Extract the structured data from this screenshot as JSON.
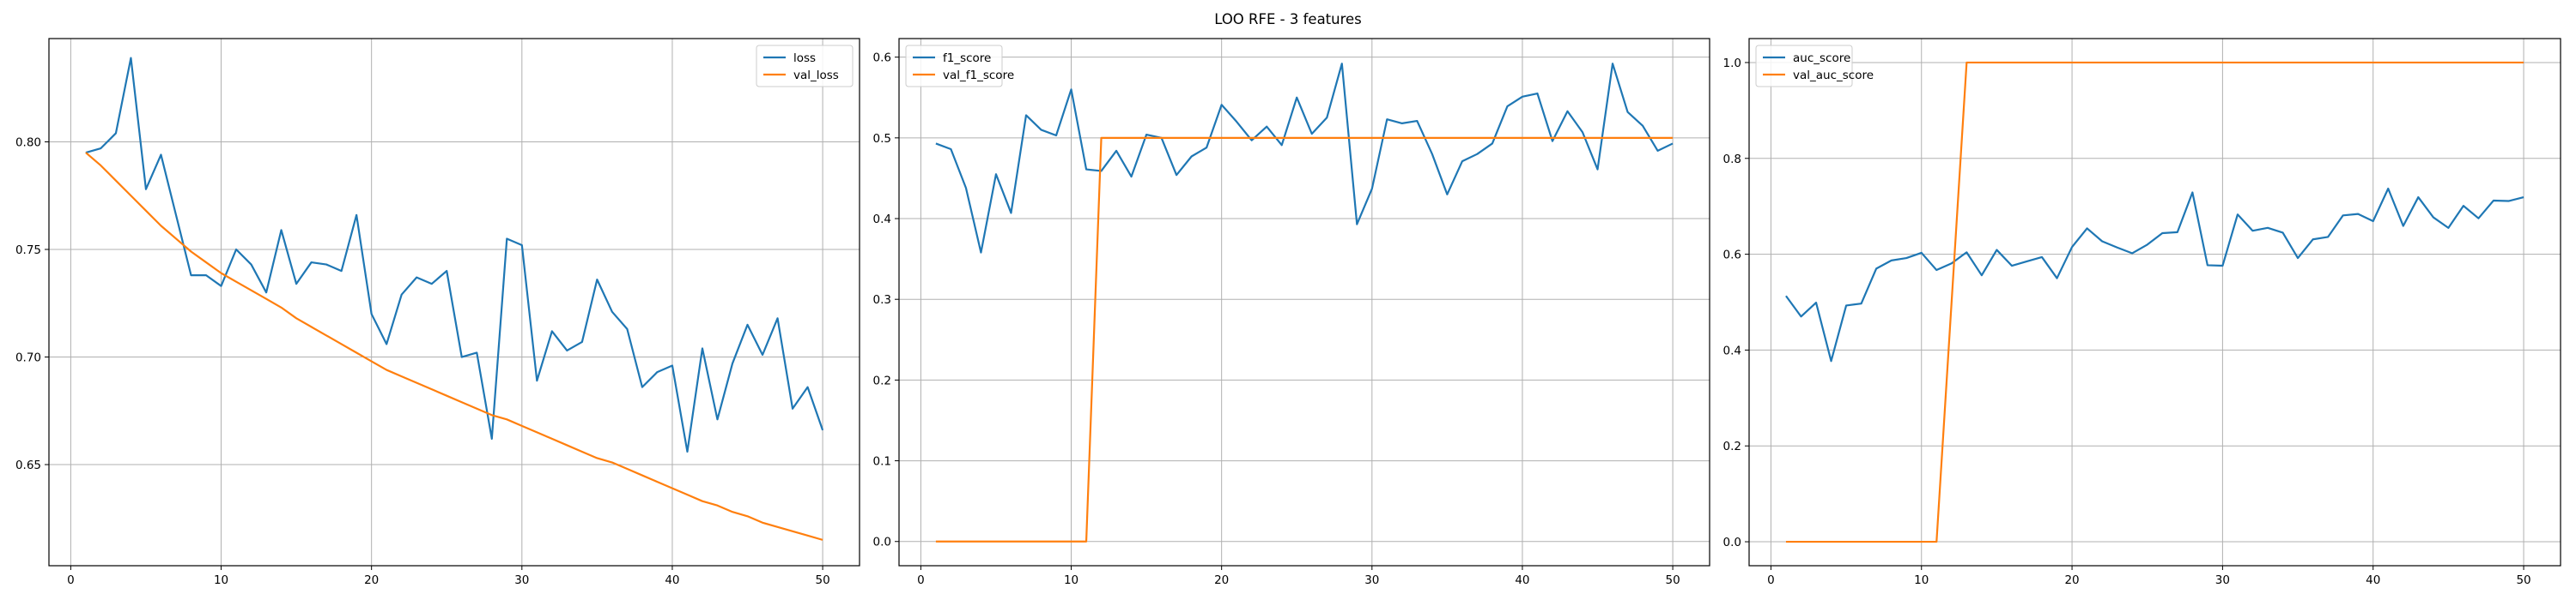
{
  "figure": {
    "title": "LOO RFE - 3 features"
  },
  "colors": {
    "train": "#1f77b4",
    "validation": "#ff7f0e",
    "grid": "#b0b0b0",
    "axes": "#000000",
    "legend_border": "#cccccc"
  },
  "chart_data": [
    {
      "type": "line",
      "title": "",
      "xlabel": "",
      "ylabel": "",
      "xlim": [
        -1.45,
        52.45
      ],
      "ylim": [
        0.603,
        0.848
      ],
      "xticks": [
        0,
        10,
        20,
        30,
        40,
        50
      ],
      "yticks": [
        0.65,
        0.7,
        0.75,
        0.8
      ],
      "ytick_labels": [
        "0.65",
        "0.70",
        "0.75",
        "0.80"
      ],
      "grid": true,
      "legend_position": "top-right",
      "x": [
        1,
        2,
        3,
        4,
        5,
        6,
        7,
        8,
        9,
        10,
        11,
        12,
        13,
        14,
        15,
        16,
        17,
        18,
        19,
        20,
        21,
        22,
        23,
        24,
        25,
        26,
        27,
        28,
        29,
        30,
        31,
        32,
        33,
        34,
        35,
        36,
        37,
        38,
        39,
        40,
        41,
        42,
        43,
        44,
        45,
        46,
        47,
        48,
        49,
        50
      ],
      "series": [
        {
          "name": "loss",
          "values": [
            0.795,
            0.797,
            0.804,
            0.839,
            0.778,
            0.794,
            0.766,
            0.738,
            0.738,
            0.733,
            0.75,
            0.743,
            0.73,
            0.759,
            0.734,
            0.744,
            0.743,
            0.74,
            0.766,
            0.72,
            0.706,
            0.729,
            0.737,
            0.734,
            0.74,
            0.7,
            0.702,
            0.662,
            0.755,
            0.752,
            0.689,
            0.712,
            0.703,
            0.707,
            0.736,
            0.721,
            0.713,
            0.686,
            0.693,
            0.696,
            0.656,
            0.704,
            0.671,
            0.697,
            0.715,
            0.701,
            0.718,
            0.676,
            0.686,
            0.666
          ]
        },
        {
          "name": "val_loss",
          "values": [
            0.795,
            0.789,
            0.782,
            0.775,
            0.768,
            0.761,
            0.755,
            0.749,
            0.744,
            0.739,
            0.735,
            0.731,
            0.727,
            0.723,
            0.718,
            0.714,
            0.71,
            0.706,
            0.702,
            0.698,
            0.694,
            0.691,
            0.688,
            0.685,
            0.682,
            0.679,
            0.676,
            0.673,
            0.671,
            0.668,
            0.665,
            0.662,
            0.659,
            0.656,
            0.653,
            0.651,
            0.648,
            0.645,
            0.642,
            0.639,
            0.636,
            0.633,
            0.631,
            0.628,
            0.626,
            0.623,
            0.621,
            0.619,
            0.617,
            0.615
          ]
        }
      ]
    },
    {
      "type": "line",
      "title": "",
      "xlabel": "",
      "ylabel": "",
      "xlim": [
        -1.45,
        52.45
      ],
      "ylim": [
        -0.03,
        0.623
      ],
      "xticks": [
        0,
        10,
        20,
        30,
        40,
        50
      ],
      "yticks": [
        0.0,
        0.1,
        0.2,
        0.3,
        0.4,
        0.5,
        0.6
      ],
      "ytick_labels": [
        "0.0",
        "0.1",
        "0.2",
        "0.3",
        "0.4",
        "0.5",
        "0.6"
      ],
      "grid": true,
      "legend_position": "top-left",
      "x": [
        1,
        2,
        3,
        4,
        5,
        6,
        7,
        8,
        9,
        10,
        11,
        12,
        13,
        14,
        15,
        16,
        17,
        18,
        19,
        20,
        21,
        22,
        23,
        24,
        25,
        26,
        27,
        28,
        29,
        30,
        31,
        32,
        33,
        34,
        35,
        36,
        37,
        38,
        39,
        40,
        41,
        42,
        43,
        44,
        45,
        46,
        47,
        48,
        49,
        50
      ],
      "series": [
        {
          "name": "f1_score",
          "values": [
            0.493,
            0.486,
            0.438,
            0.358,
            0.455,
            0.407,
            0.528,
            0.51,
            0.503,
            0.56,
            0.461,
            0.459,
            0.484,
            0.452,
            0.504,
            0.5,
            0.454,
            0.477,
            0.488,
            0.541,
            0.52,
            0.497,
            0.514,
            0.491,
            0.55,
            0.505,
            0.525,
            0.592,
            0.393,
            0.437,
            0.523,
            0.518,
            0.521,
            0.48,
            0.43,
            0.471,
            0.48,
            0.493,
            0.539,
            0.551,
            0.555,
            0.496,
            0.533,
            0.507,
            0.461,
            0.592,
            0.532,
            0.515,
            0.484,
            0.493
          ]
        },
        {
          "name": "val_f1_score",
          "values": [
            0,
            0,
            0,
            0,
            0,
            0,
            0,
            0,
            0,
            0,
            0,
            0.5,
            0.5,
            0.5,
            0.5,
            0.5,
            0.5,
            0.5,
            0.5,
            0.5,
            0.5,
            0.5,
            0.5,
            0.5,
            0.5,
            0.5,
            0.5,
            0.5,
            0.5,
            0.5,
            0.5,
            0.5,
            0.5,
            0.5,
            0.5,
            0.5,
            0.5,
            0.5,
            0.5,
            0.5,
            0.5,
            0.5,
            0.5,
            0.5,
            0.5,
            0.5,
            0.5,
            0.5,
            0.5,
            0.5
          ]
        }
      ]
    },
    {
      "type": "line",
      "title": "",
      "xlabel": "",
      "ylabel": "",
      "xlim": [
        -1.45,
        52.45
      ],
      "ylim": [
        -0.05,
        1.05
      ],
      "xticks": [
        0,
        10,
        20,
        30,
        40,
        50
      ],
      "yticks": [
        0.0,
        0.2,
        0.4,
        0.6,
        0.8,
        1.0
      ],
      "ytick_labels": [
        "0.0",
        "0.2",
        "0.4",
        "0.6",
        "0.8",
        "1.0"
      ],
      "grid": true,
      "legend_position": "top-left",
      "x": [
        1,
        2,
        3,
        4,
        5,
        6,
        7,
        8,
        9,
        10,
        11,
        12,
        13,
        14,
        15,
        16,
        17,
        18,
        19,
        20,
        21,
        22,
        23,
        24,
        25,
        26,
        27,
        28,
        29,
        30,
        31,
        32,
        33,
        34,
        35,
        36,
        37,
        38,
        39,
        40,
        41,
        42,
        43,
        44,
        45,
        46,
        47,
        48,
        49,
        50
      ],
      "series": [
        {
          "name": "auc_score",
          "values": [
            0.513,
            0.47,
            0.499,
            0.377,
            0.493,
            0.497,
            0.57,
            0.587,
            0.592,
            0.603,
            0.567,
            0.581,
            0.604,
            0.556,
            0.609,
            0.576,
            0.585,
            0.594,
            0.55,
            0.615,
            0.654,
            0.627,
            0.614,
            0.602,
            0.62,
            0.644,
            0.646,
            0.729,
            0.577,
            0.576,
            0.683,
            0.649,
            0.655,
            0.645,
            0.592,
            0.631,
            0.636,
            0.681,
            0.684,
            0.669,
            0.737,
            0.659,
            0.719,
            0.677,
            0.655,
            0.701,
            0.675,
            0.712,
            0.711,
            0.719
          ]
        },
        {
          "name": "val_auc_score",
          "values": [
            0,
            0,
            0,
            0,
            0,
            0,
            0,
            0,
            0,
            0,
            0,
            0.5,
            1,
            1,
            1,
            1,
            1,
            1,
            1,
            1,
            1,
            1,
            1,
            1,
            1,
            1,
            1,
            1,
            1,
            1,
            1,
            1,
            1,
            1,
            1,
            1,
            1,
            1,
            1,
            1,
            1,
            1,
            1,
            1,
            1,
            1,
            1,
            1,
            1,
            1
          ]
        }
      ]
    }
  ]
}
